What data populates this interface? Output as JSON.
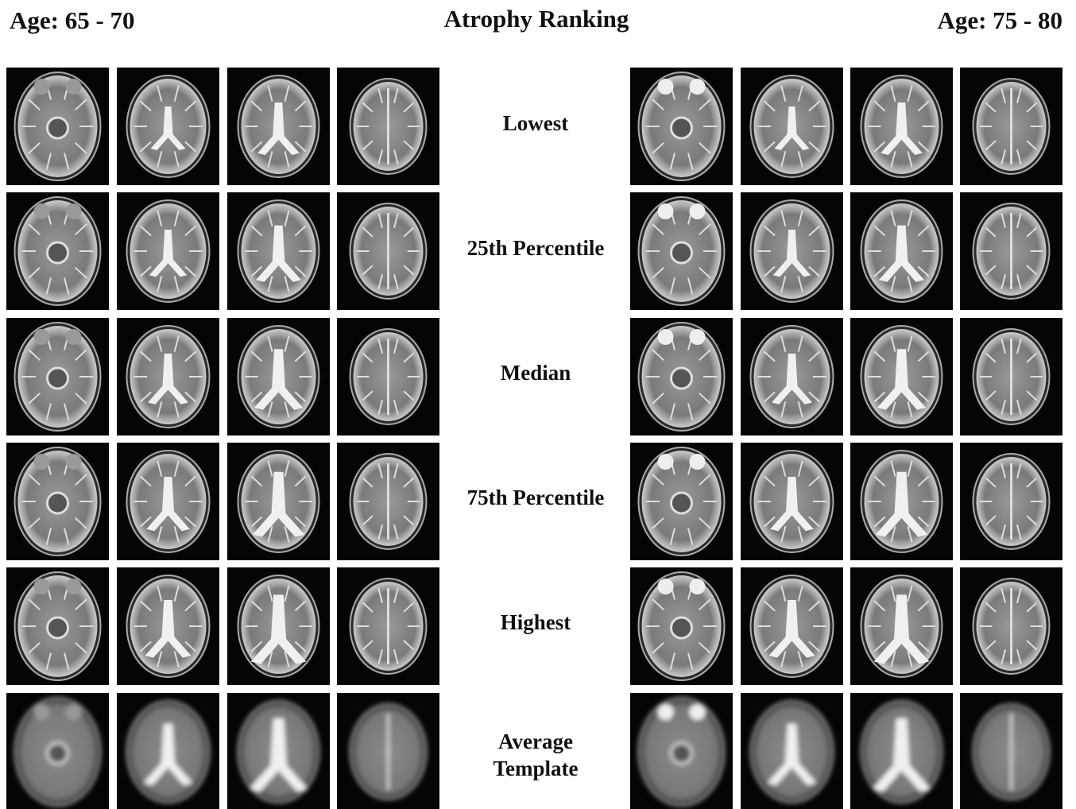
{
  "header": {
    "left": "Age: 65 - 70",
    "title": "Atrophy Ranking",
    "right": "Age: 75 - 80"
  },
  "rows": [
    {
      "label": [
        "Lowest"
      ]
    },
    {
      "label": [
        "25th Percentile"
      ]
    },
    {
      "label": [
        "Median"
      ]
    },
    {
      "label": [
        "75th Percentile"
      ]
    },
    {
      "label": [
        "Highest"
      ]
    },
    {
      "label": [
        "Average",
        "Template"
      ]
    }
  ]
}
